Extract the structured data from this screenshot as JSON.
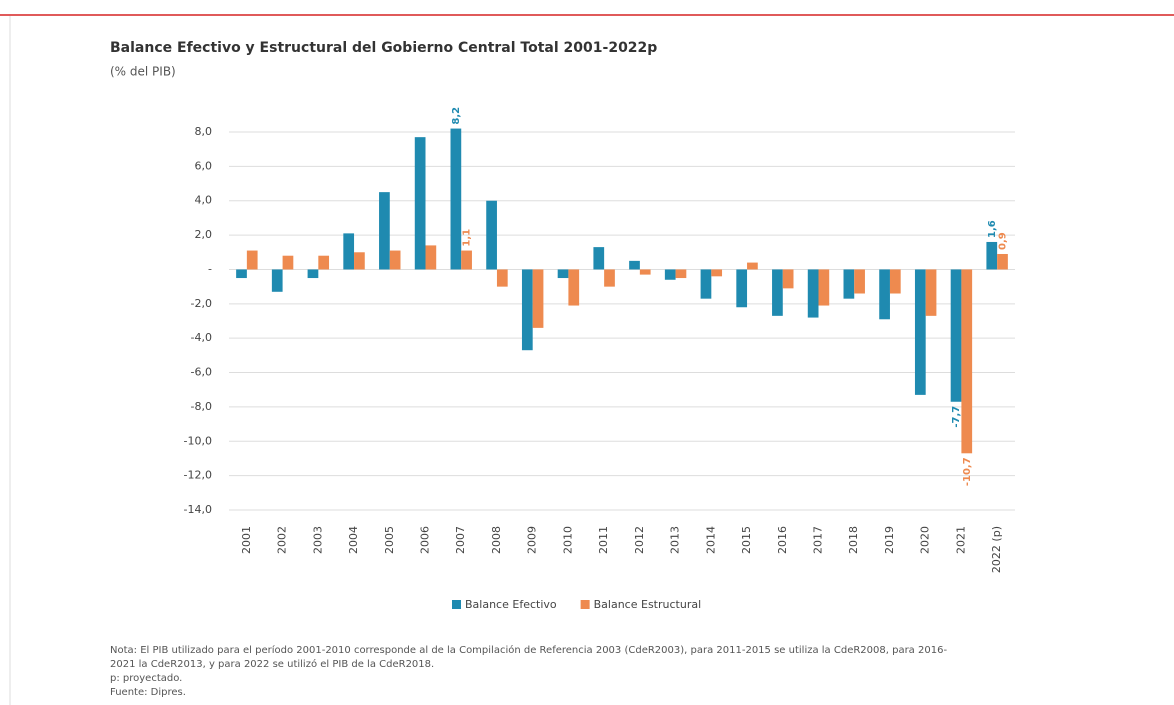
{
  "chart_data": {
    "type": "bar",
    "title": "Balance Efectivo y Estructural del Gobierno Central Total 2001-2022p",
    "subtitle": "(% del PIB)",
    "categories": [
      "2001",
      "2002",
      "2003",
      "2004",
      "2005",
      "2006",
      "2007",
      "2008",
      "2009",
      "2010",
      "2011",
      "2012",
      "2013",
      "2014",
      "2015",
      "2016",
      "2017",
      "2018",
      "2019",
      "2020",
      "2021",
      "2022 (p)"
    ],
    "series": [
      {
        "name": "Balance Efectivo",
        "color": "#1f8ab0",
        "values": [
          -0.5,
          -1.3,
          -0.5,
          2.1,
          4.5,
          7.7,
          8.2,
          4.0,
          -4.7,
          -0.5,
          1.3,
          0.5,
          -0.6,
          -1.7,
          -2.2,
          -2.7,
          -2.8,
          -1.7,
          -2.9,
          -7.3,
          -7.7,
          1.6
        ],
        "value_labels": [
          null,
          null,
          null,
          null,
          null,
          null,
          "8,2",
          null,
          null,
          null,
          null,
          null,
          null,
          null,
          null,
          null,
          null,
          null,
          null,
          null,
          "-7,7",
          "1,6"
        ]
      },
      {
        "name": "Balance Estructural",
        "color": "#ee8a4f",
        "values": [
          1.1,
          0.8,
          0.8,
          1.0,
          1.1,
          1.4,
          1.1,
          -1.0,
          -3.4,
          -2.1,
          -1.0,
          -0.3,
          -0.5,
          -0.4,
          0.4,
          -1.1,
          -2.1,
          -1.4,
          -1.4,
          -2.7,
          -10.7,
          0.9
        ],
        "value_labels": [
          null,
          null,
          null,
          null,
          null,
          null,
          "1,1",
          null,
          null,
          null,
          null,
          null,
          null,
          null,
          null,
          null,
          null,
          null,
          null,
          null,
          "-10,7",
          "0,9"
        ]
      }
    ],
    "ylim": [
      -14,
      8
    ],
    "yticks": [
      {
        "value": -14,
        "label": "-14,0"
      },
      {
        "value": -12,
        "label": "-12,0"
      },
      {
        "value": -10,
        "label": "-10,0"
      },
      {
        "value": -8,
        "label": "-8,0"
      },
      {
        "value": -6,
        "label": "-6,0"
      },
      {
        "value": -4,
        "label": "-4,0"
      },
      {
        "value": -2,
        "label": "-2,0"
      },
      {
        "value": 0,
        "label": "-"
      },
      {
        "value": 2,
        "label": "2,0"
      },
      {
        "value": 4,
        "label": "4,0"
      },
      {
        "value": 6,
        "label": "6,0"
      },
      {
        "value": 8,
        "label": "8,0"
      }
    ],
    "grid": true,
    "legend": "bottom",
    "notes": [
      "Nota: El PIB utilizado para el período 2001-2010 corresponde al de la Compilación de Referencia 2003 (CdeR2003), para 2011-2015 se utiliza la CdeR2008, para 2016-",
      "2021 la CdeR2013, y para 2022 se utilizó el PIB de la CdeR2018.",
      "p: proyectado.",
      "Fuente: Dipres."
    ]
  }
}
